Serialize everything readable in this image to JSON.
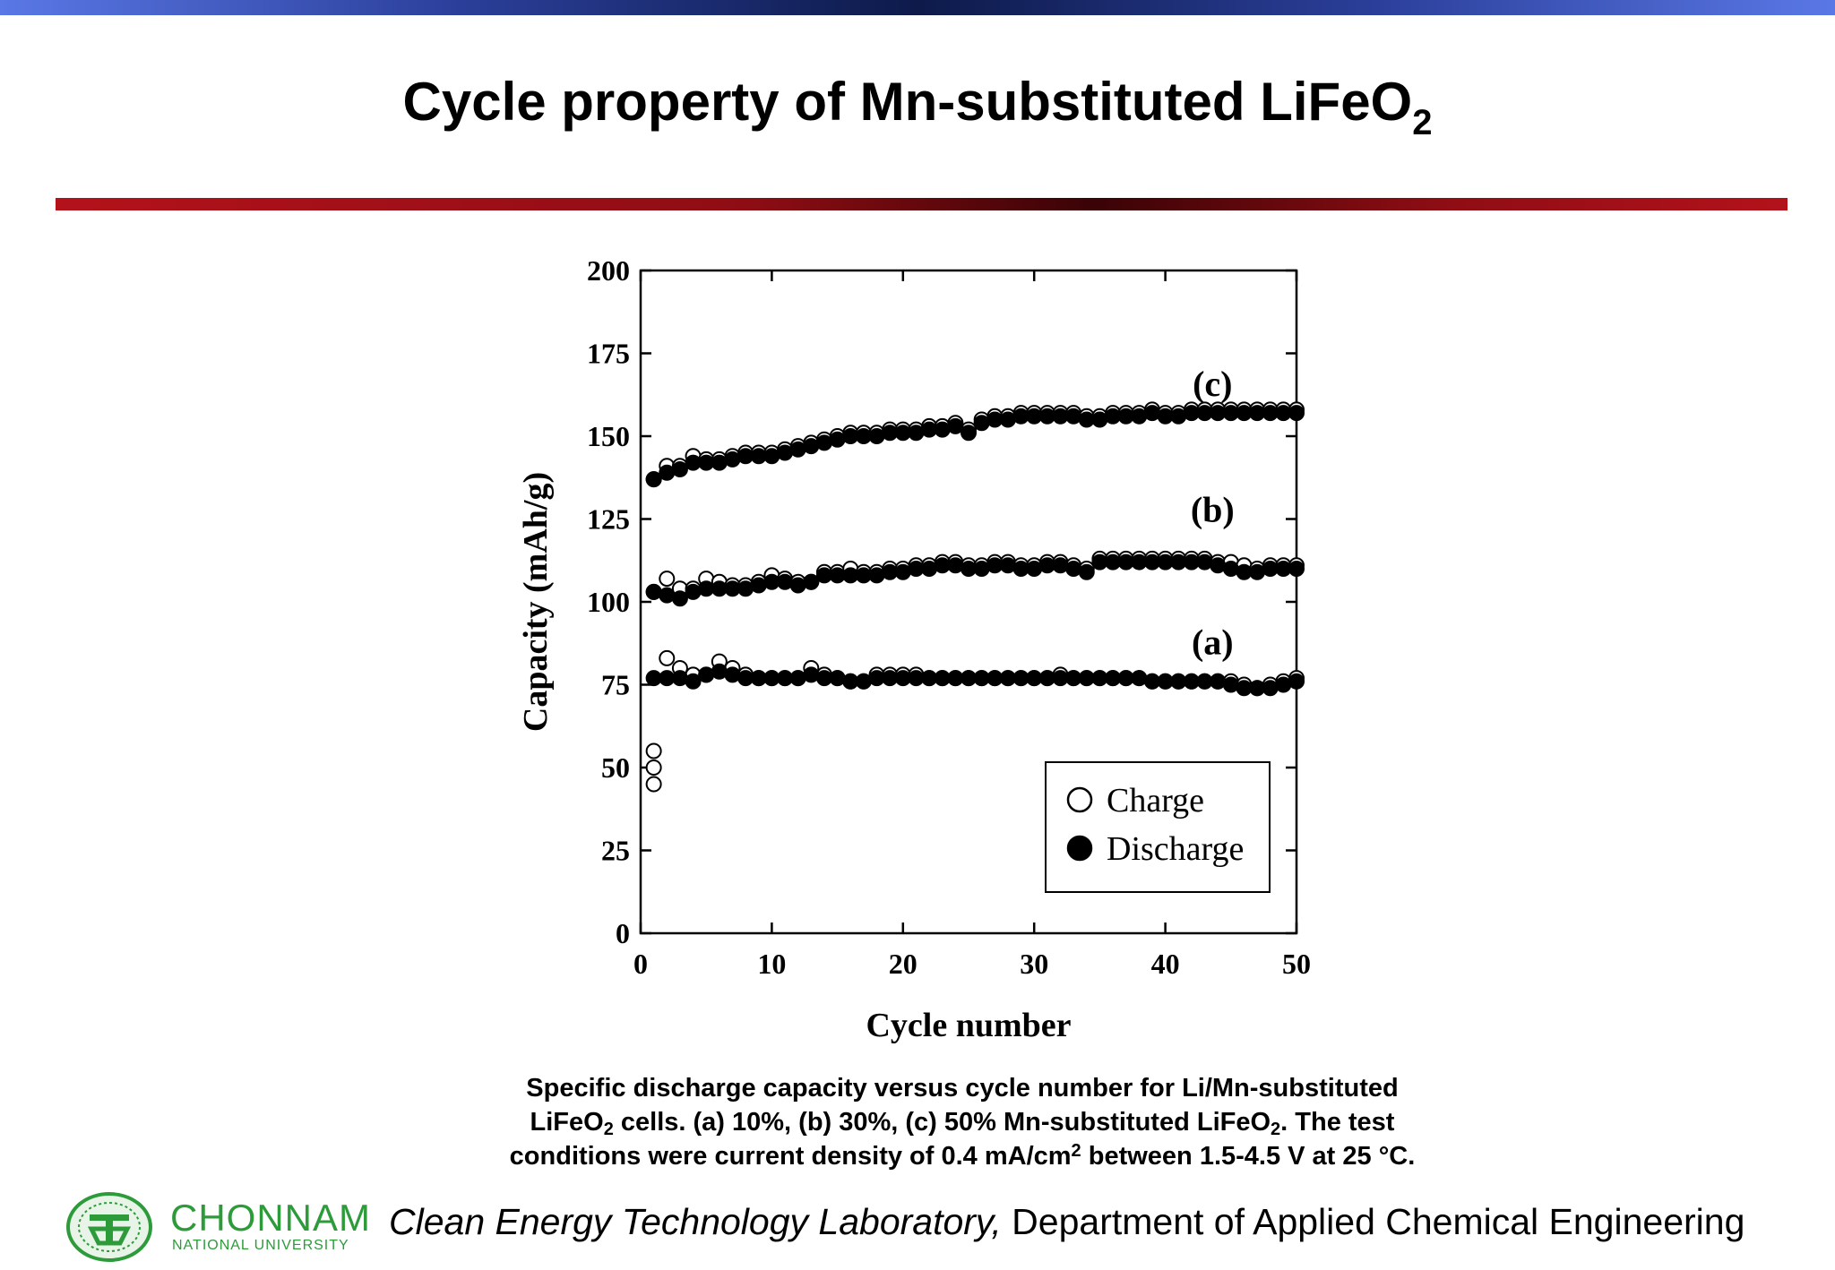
{
  "slide": {
    "title_main": "Cycle property of Mn-substituted LiFeO",
    "title_sub": "2",
    "caption": {
      "p1": "Specific discharge capacity versus cycle number for Li/Mn-substituted",
      "p2": "LiFeO",
      "p2_sub": "2",
      "p3": " cells. (a) 10%, (b) 30%, (c) 50% Mn-substituted LiFeO",
      "p3_sub": "2",
      "p4": ". The test",
      "p5": "conditions were current density of 0.4 mA/cm",
      "p5_sup": "2",
      "p6": " between 1.5-4.5 V at 25 °C."
    },
    "footer": {
      "logo_name": "CHONNAM",
      "logo_sub": "NATIONAL UNIVERSITY",
      "lab": "Clean Energy Technology Laboratory,",
      "dept": " Department of Applied Chemical Engineering"
    },
    "colors": {
      "top_bar": "#2b3f9a",
      "red_rule": "#b3121b",
      "logo_green": "#2e9b3b"
    }
  },
  "chart_data": {
    "type": "scatter",
    "xlabel": "Cycle number",
    "ylabel": "Capacity (mAh/g)",
    "xlim": [
      0,
      50
    ],
    "ylim": [
      0,
      200
    ],
    "xticks": [
      0,
      10,
      20,
      30,
      40,
      50
    ],
    "yticks": [
      0,
      25,
      50,
      75,
      100,
      125,
      150,
      175,
      200
    ],
    "legend": {
      "position": "lower-right",
      "entries": [
        "Charge",
        "Discharge"
      ]
    },
    "annotations": [
      "(c)",
      "(b)",
      "(a)"
    ],
    "series": [
      {
        "name": "Charge",
        "group": "(c)",
        "marker": "open-circle",
        "x": [
          1,
          2,
          3,
          4,
          5,
          6,
          7,
          8,
          9,
          10,
          11,
          12,
          13,
          14,
          15,
          16,
          17,
          18,
          19,
          20,
          21,
          22,
          23,
          24,
          25,
          26,
          27,
          28,
          29,
          30,
          31,
          32,
          33,
          34,
          35,
          36,
          37,
          38,
          39,
          40,
          41,
          42,
          43,
          44,
          45,
          46,
          47,
          48,
          49,
          50
        ],
        "y": [
          137,
          141,
          141,
          144,
          143,
          143,
          144,
          145,
          145,
          145,
          146,
          147,
          148,
          149,
          150,
          151,
          151,
          151,
          152,
          152,
          152,
          153,
          153,
          154,
          152,
          155,
          156,
          156,
          157,
          157,
          157,
          157,
          157,
          156,
          156,
          157,
          157,
          157,
          158,
          157,
          157,
          158,
          158,
          158,
          158,
          158,
          158,
          158,
          158,
          158
        ]
      },
      {
        "name": "Discharge",
        "group": "(c)",
        "marker": "filled-circle",
        "x": [
          1,
          2,
          3,
          4,
          5,
          6,
          7,
          8,
          9,
          10,
          11,
          12,
          13,
          14,
          15,
          16,
          17,
          18,
          19,
          20,
          21,
          22,
          23,
          24,
          25,
          26,
          27,
          28,
          29,
          30,
          31,
          32,
          33,
          34,
          35,
          36,
          37,
          38,
          39,
          40,
          41,
          42,
          43,
          44,
          45,
          46,
          47,
          48,
          49,
          50
        ],
        "y": [
          137,
          139,
          140,
          142,
          142,
          142,
          143,
          144,
          144,
          144,
          145,
          146,
          147,
          148,
          149,
          150,
          150,
          150,
          151,
          151,
          151,
          152,
          152,
          153,
          151,
          154,
          155,
          155,
          156,
          156,
          156,
          156,
          156,
          155,
          155,
          156,
          156,
          156,
          157,
          156,
          156,
          157,
          157,
          157,
          157,
          157,
          157,
          157,
          157,
          157
        ]
      },
      {
        "name": "Charge",
        "group": "(b)",
        "marker": "open-circle",
        "x": [
          1,
          2,
          3,
          4,
          5,
          6,
          7,
          8,
          9,
          10,
          11,
          12,
          13,
          14,
          15,
          16,
          17,
          18,
          19,
          20,
          21,
          22,
          23,
          24,
          25,
          26,
          27,
          28,
          29,
          30,
          31,
          32,
          33,
          34,
          35,
          36,
          37,
          38,
          39,
          40,
          41,
          42,
          43,
          44,
          45,
          46,
          47,
          48,
          49,
          50
        ],
        "y": [
          103,
          107,
          104,
          104,
          107,
          106,
          105,
          105,
          106,
          108,
          107,
          106,
          106,
          109,
          109,
          110,
          109,
          109,
          110,
          110,
          111,
          111,
          112,
          112,
          111,
          111,
          112,
          112,
          111,
          111,
          112,
          112,
          111,
          110,
          113,
          113,
          113,
          113,
          113,
          113,
          113,
          113,
          113,
          112,
          112,
          111,
          110,
          111,
          111,
          111
        ]
      },
      {
        "name": "Discharge",
        "group": "(b)",
        "marker": "filled-circle",
        "x": [
          1,
          2,
          3,
          4,
          5,
          6,
          7,
          8,
          9,
          10,
          11,
          12,
          13,
          14,
          15,
          16,
          17,
          18,
          19,
          20,
          21,
          22,
          23,
          24,
          25,
          26,
          27,
          28,
          29,
          30,
          31,
          32,
          33,
          34,
          35,
          36,
          37,
          38,
          39,
          40,
          41,
          42,
          43,
          44,
          45,
          46,
          47,
          48,
          49,
          50
        ],
        "y": [
          103,
          102,
          101,
          103,
          104,
          104,
          104,
          104,
          105,
          106,
          106,
          105,
          106,
          108,
          108,
          108,
          108,
          108,
          109,
          109,
          110,
          110,
          111,
          111,
          110,
          110,
          111,
          111,
          110,
          110,
          111,
          111,
          110,
          109,
          112,
          112,
          112,
          112,
          112,
          112,
          112,
          112,
          112,
          111,
          110,
          109,
          109,
          110,
          110,
          110
        ]
      },
      {
        "name": "Charge",
        "group": "(a)",
        "marker": "open-circle",
        "x": [
          1,
          1,
          1,
          2,
          3,
          4,
          5,
          6,
          7,
          8,
          9,
          10,
          11,
          12,
          13,
          14,
          15,
          16,
          17,
          18,
          19,
          20,
          21,
          22,
          23,
          24,
          25,
          26,
          27,
          28,
          29,
          30,
          31,
          32,
          33,
          34,
          35,
          36,
          37,
          38,
          39,
          40,
          41,
          42,
          43,
          44,
          45,
          46,
          47,
          48,
          49,
          50
        ],
        "y": [
          45,
          50,
          55,
          83,
          80,
          78,
          78,
          82,
          80,
          78,
          77,
          77,
          77,
          77,
          80,
          78,
          77,
          76,
          76,
          78,
          78,
          78,
          78,
          77,
          77,
          77,
          77,
          77,
          77,
          77,
          77,
          77,
          77,
          78,
          77,
          77,
          77,
          77,
          77,
          77,
          76,
          76,
          76,
          76,
          76,
          76,
          76,
          75,
          74,
          75,
          76,
          77
        ]
      },
      {
        "name": "Discharge",
        "group": "(a)",
        "marker": "filled-circle",
        "x": [
          1,
          2,
          3,
          4,
          5,
          6,
          7,
          8,
          9,
          10,
          11,
          12,
          13,
          14,
          15,
          16,
          17,
          18,
          19,
          20,
          21,
          22,
          23,
          24,
          25,
          26,
          27,
          28,
          29,
          30,
          31,
          32,
          33,
          34,
          35,
          36,
          37,
          38,
          39,
          40,
          41,
          42,
          43,
          44,
          45,
          46,
          47,
          48,
          49,
          50
        ],
        "y": [
          77,
          77,
          77,
          76,
          78,
          79,
          78,
          77,
          77,
          77,
          77,
          77,
          78,
          77,
          77,
          76,
          76,
          77,
          77,
          77,
          77,
          77,
          77,
          77,
          77,
          77,
          77,
          77,
          77,
          77,
          77,
          77,
          77,
          77,
          77,
          77,
          77,
          77,
          76,
          76,
          76,
          76,
          76,
          76,
          75,
          74,
          74,
          74,
          75,
          76
        ]
      }
    ]
  }
}
